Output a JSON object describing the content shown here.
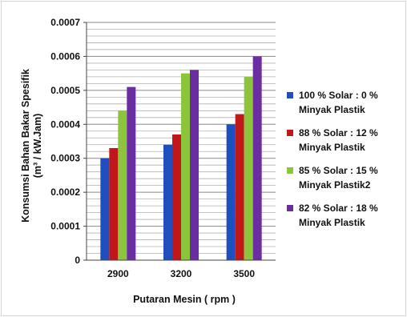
{
  "chart_data": {
    "type": "bar",
    "title": "",
    "xlabel": "Putaran Mesin ( rpm )",
    "ylabel_line1": "Konsumsi Bahan Bakar Spesifik",
    "ylabel_line2": "(m³ / kW.Jam)",
    "categories": [
      "2900",
      "3200",
      "3500"
    ],
    "ylim": [
      0,
      0.0007
    ],
    "yticks": [
      "0",
      "0.0001",
      "0.0002",
      "0.0003",
      "0.0004",
      "0.0005",
      "0.0006",
      "0.0007"
    ],
    "grid": true,
    "legend_position": "right",
    "series": [
      {
        "name": "100 % Solar : 0 % Minyak Plastik",
        "color": "#1f4fbf",
        "values": [
          0.0003,
          0.00034,
          0.0004
        ]
      },
      {
        "name": "88 % Solar : 12 % Minyak Plastik",
        "color": "#c0171a",
        "values": [
          0.00033,
          0.00037,
          0.00043
        ]
      },
      {
        "name": "85 % Solar : 15 % Minyak Plastik2",
        "color": "#8cc43c",
        "values": [
          0.00044,
          0.00055,
          0.00054
        ]
      },
      {
        "name": "82 % Solar : 18 % Minyak Plastik",
        "color": "#6a2ea0",
        "values": [
          0.00051,
          0.00056,
          0.0006
        ]
      }
    ]
  }
}
